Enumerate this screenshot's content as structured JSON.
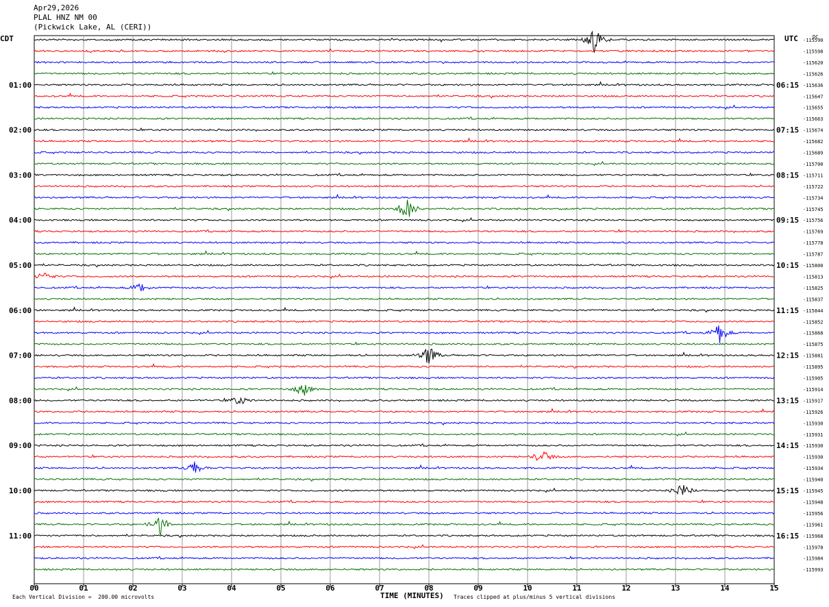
{
  "header": {
    "date": "Apr29,2026",
    "station": "PLAL HNZ NM 00",
    "location": "(Pickwick Lake, AL (CERI))"
  },
  "left_tz": "CDT",
  "right_tz": "UTC",
  "dc_label": "DC",
  "footer": {
    "scale": "Each Vertical Division =  200.00 microvolts",
    "xlabel": "TIME (MINUTES)",
    "clip_note": "Traces clipped at plus/minus 5 vertical divisions"
  },
  "chart_data": {
    "type": "line",
    "title": "PLAL HNZ NM 00",
    "xlabel": "TIME (MINUTES)",
    "ylabel": "",
    "xlim": [
      0,
      15
    ],
    "x_ticks": [
      "00",
      "01",
      "02",
      "03",
      "04",
      "05",
      "06",
      "07",
      "08",
      "09",
      "10",
      "11",
      "12",
      "13",
      "14",
      "15"
    ],
    "grid": true,
    "trace_colors": [
      "#000000",
      "#ff0000",
      "#0000ff",
      "#007000"
    ],
    "left_hour_labels": [
      "01:00",
      "02:00",
      "03:00",
      "04:00",
      "05:00",
      "06:00",
      "07:00",
      "08:00",
      "09:00",
      "10:00",
      "11:00"
    ],
    "right_hour_labels": [
      "06:15",
      "07:15",
      "08:15",
      "09:15",
      "10:15",
      "11:15",
      "12:15",
      "13:15",
      "14:15",
      "15:15",
      "16:15"
    ],
    "trace_dc_offsets": [
      "-115590",
      "-115598",
      "-115620",
      "-115626",
      "-115636",
      "-115647",
      "-115655",
      "-115663",
      "-115674",
      "-115682",
      "-115689",
      "-115700",
      "-115711",
      "-115722",
      "-115734",
      "-115745",
      "-115756",
      "-115769",
      "-115778",
      "-115787",
      "-115800",
      "-115813",
      "-115825",
      "-115837",
      "-115844",
      "-115852",
      "-115868",
      "-115875",
      "-115881",
      "-115895",
      "-115905",
      "-115914",
      "-115917",
      "-115926",
      "-115930",
      "-115931",
      "-115930",
      "-115930",
      "-115934",
      "-115940",
      "-115945",
      "-115948",
      "-115956",
      "-115961",
      "-115968",
      "-115978",
      "-115984",
      "-115993"
    ],
    "events": [
      {
        "trace": 0,
        "minute": 11.35,
        "amplitude": 5
      },
      {
        "trace": 15,
        "minute": 7.55,
        "amplitude": 5
      },
      {
        "trace": 21,
        "minute": 0.2,
        "amplitude": 2
      },
      {
        "trace": 22,
        "minute": 2.15,
        "amplitude": 2
      },
      {
        "trace": 26,
        "minute": 13.9,
        "amplitude": 4
      },
      {
        "trace": 28,
        "minute": 8.0,
        "amplitude": 4
      },
      {
        "trace": 31,
        "minute": 5.45,
        "amplitude": 3
      },
      {
        "trace": 32,
        "minute": 4.15,
        "amplitude": 2
      },
      {
        "trace": 37,
        "minute": 10.3,
        "amplitude": 3
      },
      {
        "trace": 38,
        "minute": 3.25,
        "amplitude": 3
      },
      {
        "trace": 40,
        "minute": 13.15,
        "amplitude": 3
      },
      {
        "trace": 43,
        "minute": 2.55,
        "amplitude": 4
      }
    ]
  }
}
